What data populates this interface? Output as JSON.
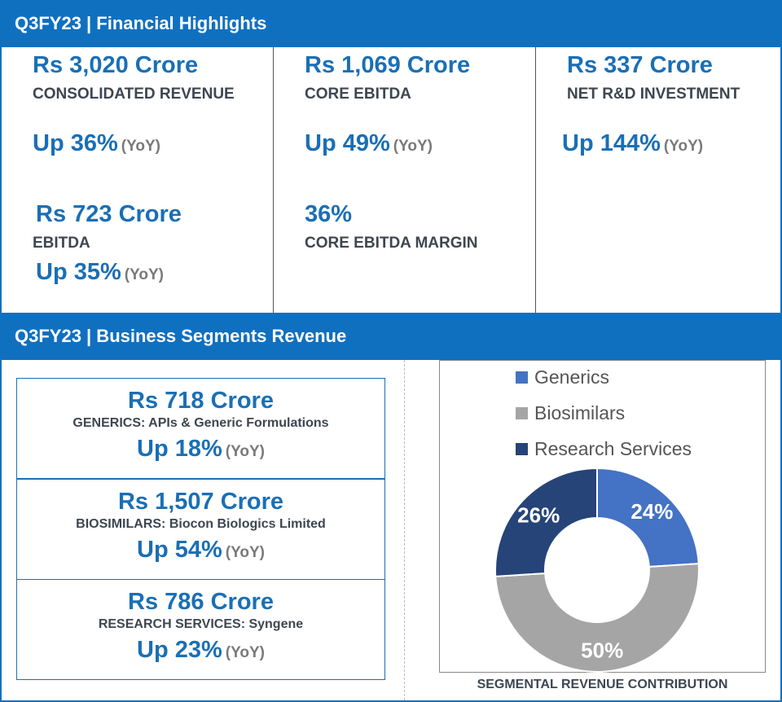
{
  "header1": {
    "title": "Q3FY23 | Financial Highlights"
  },
  "highlights": {
    "revenue": {
      "value": "Rs 3,020 Crore",
      "label": "CONSOLIDATED REVENUE",
      "growth": "Up 36%",
      "yoy": "(YoY)"
    },
    "ebitda": {
      "value": "Rs 723 Crore",
      "label": "EBITDA",
      "growth": "Up 35%",
      "yoy": "(YoY)"
    },
    "core_ebitda": {
      "value": "Rs 1,069 Crore",
      "label": "CORE EBITDA",
      "growth": "Up 49%",
      "yoy": "(YoY)"
    },
    "core_margin": {
      "value": "36%",
      "label": "CORE EBITDA MARGIN"
    },
    "rnd": {
      "value": "Rs 337 Crore",
      "label": "NET R&D INVESTMENT",
      "growth": "Up 144%",
      "yoy": "(YoY)"
    }
  },
  "header2": {
    "title": "Q3FY23 | Business Segments Revenue"
  },
  "segments": [
    {
      "value": "Rs 718 Crore",
      "desc": "GENERICS: APIs & Generic Formulations",
      "growth": "Up 18%",
      "yoy": "(YoY)"
    },
    {
      "value": "Rs 1,507 Crore",
      "desc": "BIOSIMILARS: Biocon Biologics Limited",
      "growth": "Up 54%",
      "yoy": "(YoY)"
    },
    {
      "value": "Rs 786 Crore",
      "desc": "RESEARCH SERVICES: Syngene",
      "growth": "Up 23%",
      "yoy": "(YoY)"
    }
  ],
  "chart_data": {
    "type": "pie",
    "title": "SEGMENTAL REVENUE CONTRIBUTION",
    "categories": [
      "Generics",
      "Biosimilars",
      "Research Services"
    ],
    "values": [
      24,
      50,
      26
    ],
    "labels": [
      "24%",
      "50%",
      "26%"
    ],
    "colors": [
      "#4472C4",
      "#A5A5A5",
      "#264478"
    ],
    "donut": true,
    "legend": "top"
  }
}
